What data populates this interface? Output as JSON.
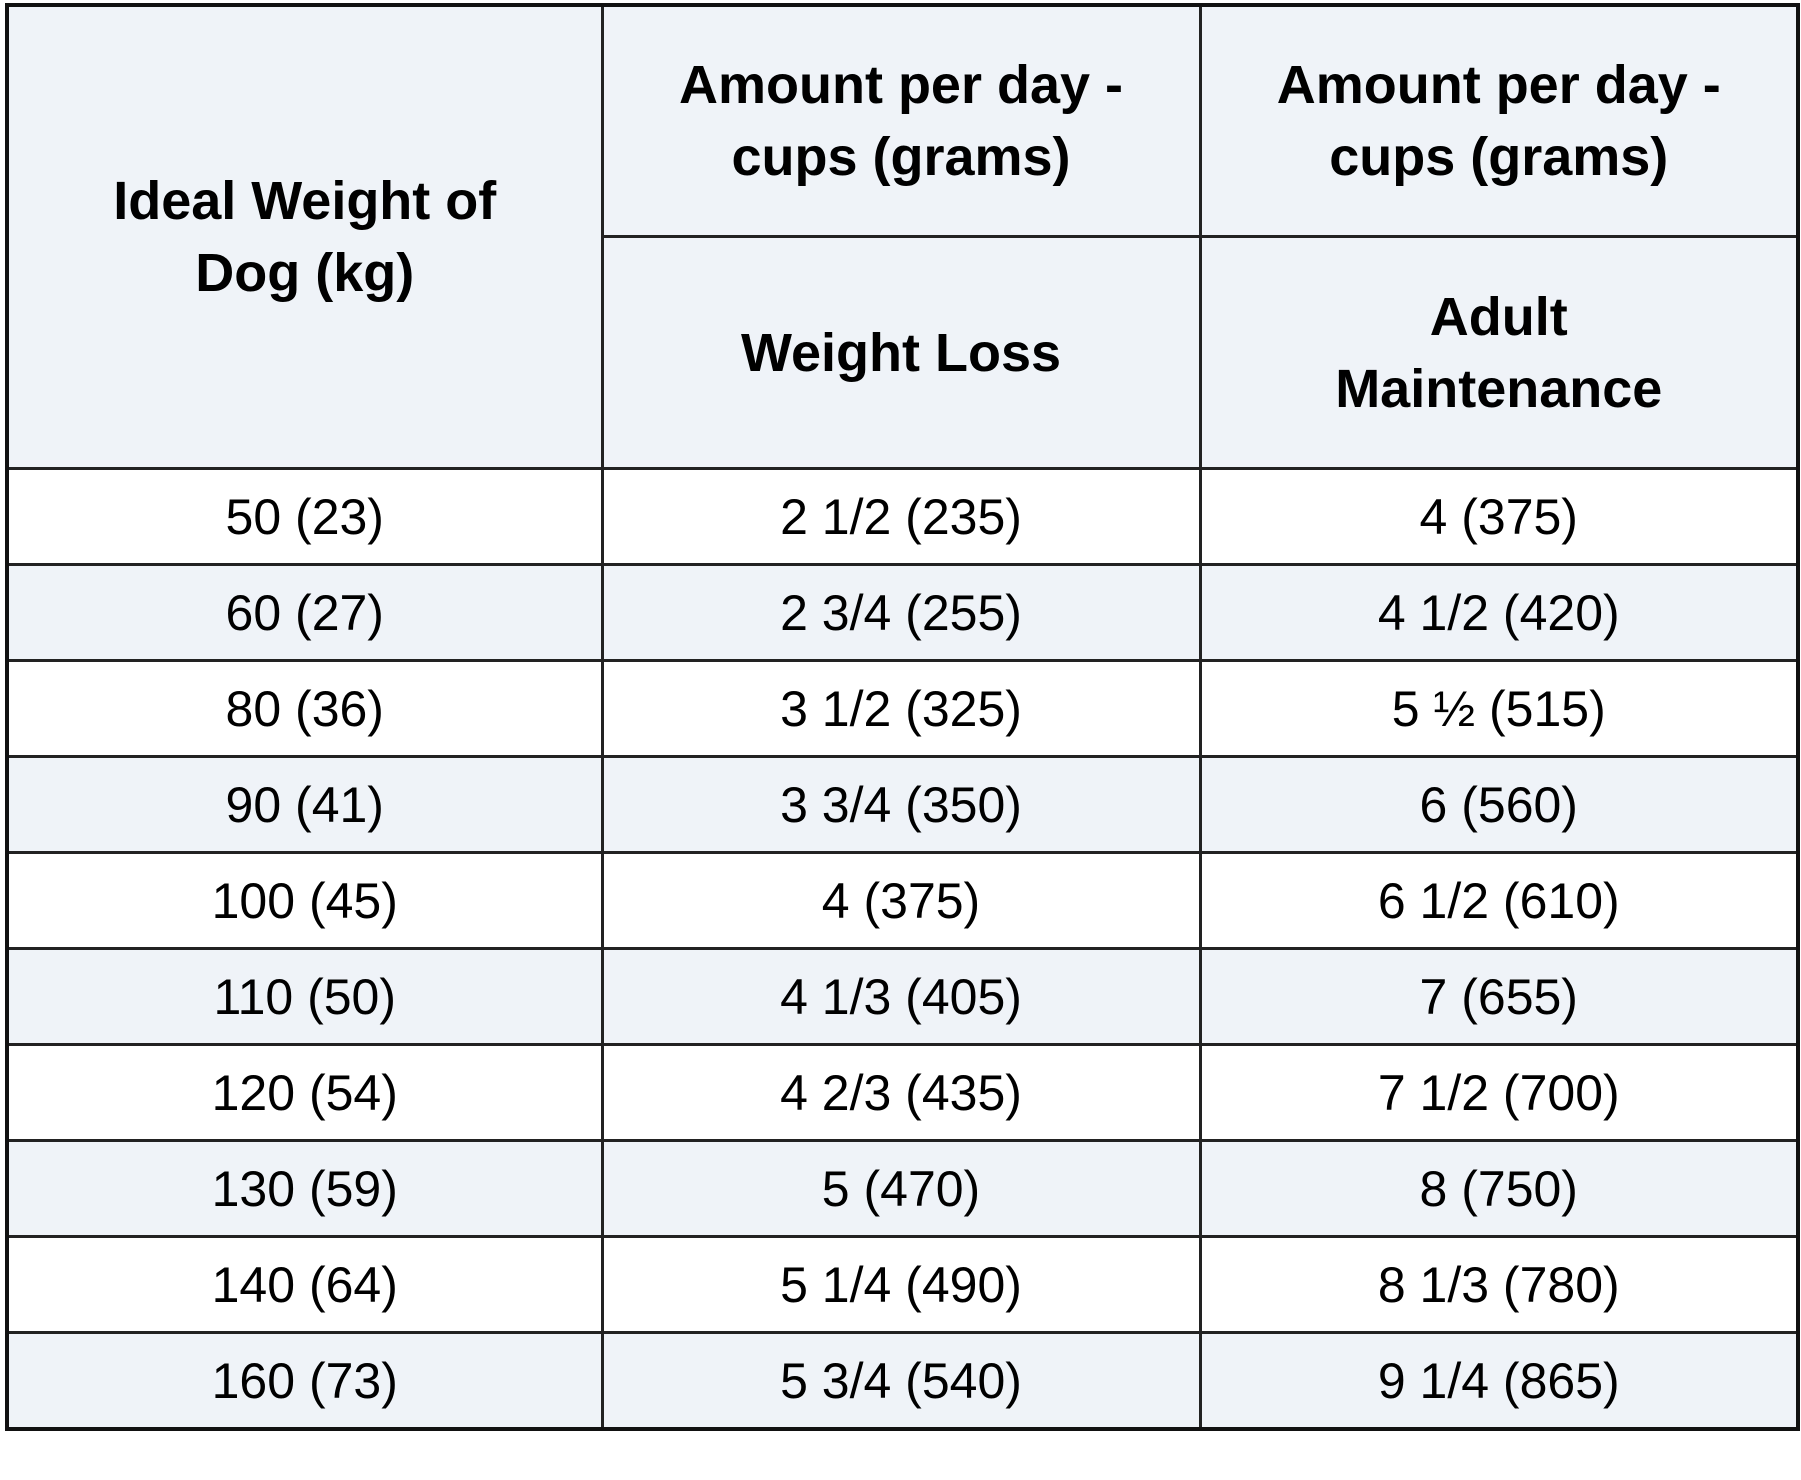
{
  "header": {
    "weight_col": "Ideal Weight of Dog (kg)",
    "amount_col_1": "Amount per day - cups (grams)",
    "amount_col_2": "Amount per day - cups (grams)",
    "sub_weight_loss": "Weight Loss",
    "sub_adult_maintenance": "Adult Maintenance"
  },
  "rows": [
    {
      "weight": "50 (23)",
      "weight_loss": "2 1/2 (235)",
      "adult_maintenance": "4 (375)"
    },
    {
      "weight": "60 (27)",
      "weight_loss": "2 3/4 (255)",
      "adult_maintenance": "4 1/2 (420)"
    },
    {
      "weight": "80 (36)",
      "weight_loss": "3 1/2 (325)",
      "adult_maintenance": "5 ½ (515)"
    },
    {
      "weight": "90 (41)",
      "weight_loss": "3 3/4 (350)",
      "adult_maintenance": "6 (560)"
    },
    {
      "weight": "100 (45)",
      "weight_loss": "4 (375)",
      "adult_maintenance": "6 1/2 (610)"
    },
    {
      "weight": "110 (50)",
      "weight_loss": "4 1/3 (405)",
      "adult_maintenance": "7 (655)"
    },
    {
      "weight": "120 (54)",
      "weight_loss": "4 2/3 (435)",
      "adult_maintenance": "7 1/2 (700)"
    },
    {
      "weight": "130 (59)",
      "weight_loss": "5 (470)",
      "adult_maintenance": "8 (750)"
    },
    {
      "weight": "140 (64)",
      "weight_loss": "5 1/4 (490)",
      "adult_maintenance": "8 1/3 (780)"
    },
    {
      "weight": "160 (73)",
      "weight_loss": "5 3/4 (540)",
      "adult_maintenance": "9 1/4 (865)"
    }
  ],
  "colors": {
    "header_bg": "#eff3f8",
    "stripe_bg": "#eff3f8",
    "row_bg": "#ffffff",
    "border": "#222222",
    "text": "#000000"
  }
}
